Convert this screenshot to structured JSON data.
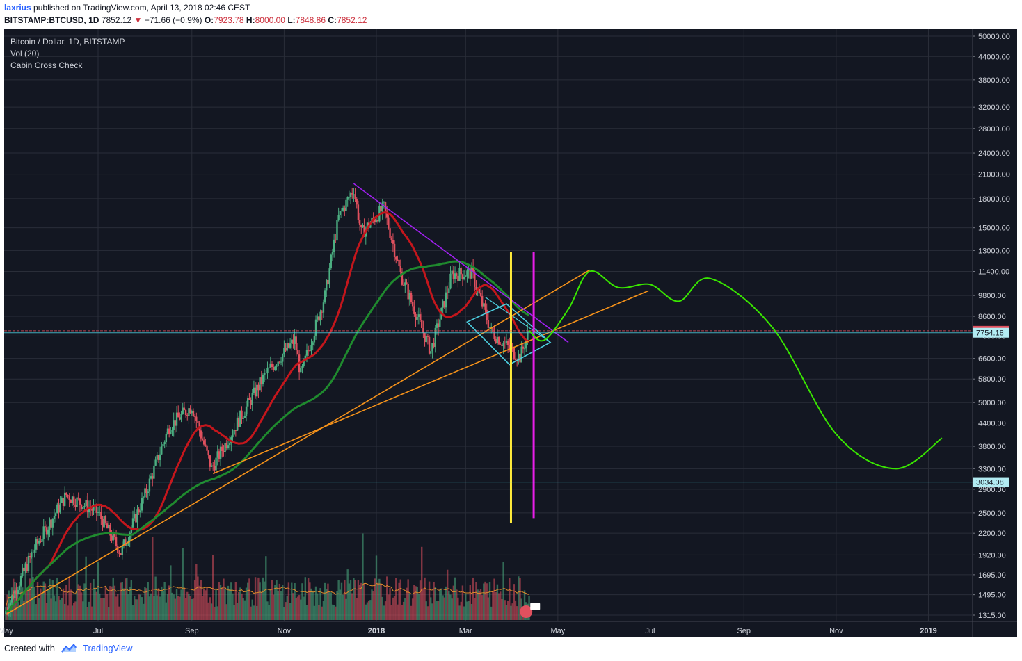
{
  "header": {
    "user": "laxrius",
    "published_text": "published on TradingView.com, April 13, 2018 02:46 CEST",
    "symbol": "BITSTAMP:BTCUSD, 1D",
    "last": "7852.12",
    "change": "−71.66 (−0.9%)",
    "o_label": "O:",
    "o": "7923.78",
    "h_label": "H:",
    "h": "8000.00",
    "l_label": "L:",
    "l": "7848.86",
    "c_label": "C:",
    "c": "7852.12"
  },
  "legend": {
    "title": "Bitcoin / Dollar, 1D, BITSTAMP",
    "indicator1": "Vol (20)",
    "indicator2": "Cabin Cross Check"
  },
  "footer": {
    "created_with": "Created with",
    "brand": "TradingView"
  },
  "colors": {
    "background": "#131722",
    "grid": "#2a2e39",
    "up": "#4caf82",
    "down": "#e0505e",
    "ma_fast": "#c4161c",
    "ma_slow": "#1f8a2e",
    "trend_orange": "#f7931a",
    "resistance_purple": "#a020f0",
    "cyan": "#4dd0e1",
    "yellow": "#ffeb3b",
    "magenta": "#e91ee9",
    "projection_green": "#39e600",
    "volume_ma": "#e08a2a"
  },
  "chart_data": {
    "type": "candlestick",
    "title": "Bitcoin / Dollar, 1D, BITSTAMP",
    "y_scale": "log",
    "y_ticks": [
      "50000.00",
      "44000.00",
      "38000.00",
      "32000.00",
      "28000.00",
      "24000.00",
      "21000.00",
      "18000.00",
      "15000.00",
      "13000.00",
      "11400.00",
      "9800.00",
      "8600.00",
      "7600.00",
      "6600.00",
      "5800.00",
      "5000.00",
      "4400.00",
      "3800.00",
      "3300.00",
      "2900.00",
      "2500.00",
      "2200.00",
      "1920.00",
      "1695.00",
      "1495.00",
      "1315.00"
    ],
    "x_ticks": [
      "May",
      "Jul",
      "Sep",
      "Nov",
      "2018",
      "Mar",
      "May",
      "Jul",
      "Sep",
      "Nov",
      "2019"
    ],
    "price_labels": [
      {
        "label": "7852.12",
        "value": 7852.12,
        "kind": "last"
      },
      {
        "label": "7754.18",
        "value": 7754.18,
        "kind": "level"
      },
      {
        "label": "3034.08",
        "value": 3034.08,
        "kind": "level"
      }
    ],
    "close_series": {
      "dates": [
        "2017-05-01",
        "2017-05-20",
        "2017-06-10",
        "2017-07-01",
        "2017-07-16",
        "2017-08-01",
        "2017-08-17",
        "2017-09-01",
        "2017-09-14",
        "2017-10-01",
        "2017-10-20",
        "2017-11-08",
        "2017-11-12",
        "2017-11-28",
        "2017-12-07",
        "2017-12-17",
        "2017-12-22",
        "2018-01-06",
        "2018-01-17",
        "2018-02-06",
        "2018-02-20",
        "2018-03-05",
        "2018-03-18",
        "2018-04-01",
        "2018-04-06",
        "2018-04-12"
      ],
      "close": [
        1350,
        2000,
        2800,
        2500,
        1950,
        2800,
        4300,
        4900,
        3300,
        4400,
        6000,
        7400,
        5950,
        9800,
        16000,
        19200,
        14500,
        17000,
        11200,
        6900,
        11200,
        11300,
        7800,
        6900,
        6650,
        7850
      ]
    },
    "projection": {
      "name": "projection",
      "points": [
        [
          "2018-04-12",
          7852
        ],
        [
          "2018-04-22",
          7400
        ],
        [
          "2018-05-08",
          9000
        ],
        [
          "2018-05-22",
          11400
        ],
        [
          "2018-06-10",
          10300
        ],
        [
          "2018-07-01",
          10500
        ],
        [
          "2018-07-20",
          9450
        ],
        [
          "2018-08-10",
          10900
        ],
        [
          "2018-09-20",
          8000
        ],
        [
          "2018-11-01",
          4100
        ],
        [
          "2018-12-10",
          3300
        ],
        [
          "2019-01-10",
          4000
        ]
      ]
    },
    "volume_indicator": "Vol (20)"
  }
}
